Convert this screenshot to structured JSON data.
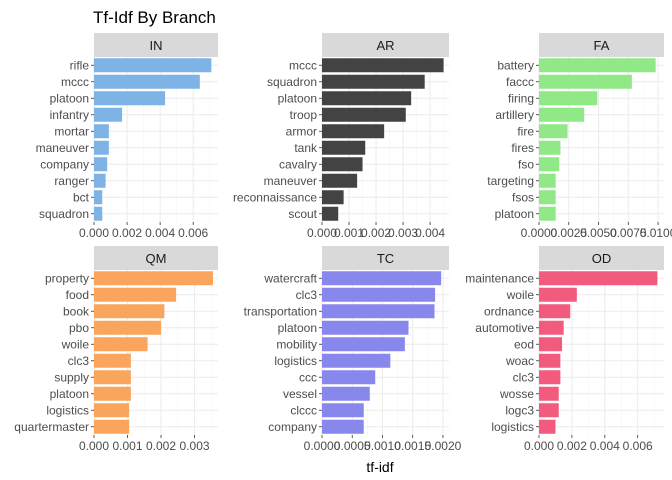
{
  "chart_data": {
    "type": "bar",
    "title": "Tf-Idf By Branch",
    "xlabel": "tf-idf",
    "ylabel": "",
    "orientation": "horizontal",
    "facets": [
      {
        "name": "IN",
        "color": "#7eb3e6",
        "xlim": [
          0,
          0.0075
        ],
        "x_ticks": [
          "0.000",
          "0.002",
          "0.004",
          "0.006"
        ],
        "x_tick_values": [
          0,
          0.002,
          0.004,
          0.006
        ],
        "categories": [
          "rifle",
          "mccc",
          "platoon",
          "infantry",
          "mortar",
          "maneuver",
          "company",
          "ranger",
          "bct",
          "squadron"
        ],
        "values": [
          0.0071,
          0.0064,
          0.0043,
          0.0017,
          0.0009,
          0.0009,
          0.0008,
          0.0007,
          0.0005,
          0.0005
        ]
      },
      {
        "name": "AR",
        "color": "#434344",
        "xlim": [
          0,
          0.0047
        ],
        "x_ticks": [
          "0.000",
          "0.001",
          "0.002",
          "0.003",
          "0.004"
        ],
        "x_tick_values": [
          0,
          0.001,
          0.002,
          0.003,
          0.004
        ],
        "categories": [
          "mccc",
          "squadron",
          "platoon",
          "troop",
          "armor",
          "tank",
          "cavalry",
          "maneuver",
          "reconnaissance",
          "scout"
        ],
        "values": [
          0.0045,
          0.0038,
          0.0033,
          0.0031,
          0.0023,
          0.0016,
          0.0015,
          0.0013,
          0.0008,
          0.0006
        ]
      },
      {
        "name": "FA",
        "color": "#91e887",
        "xlim": [
          0,
          0.0105
        ],
        "x_ticks": [
          "0.0000",
          "0.0025",
          "0.0050",
          "0.0075",
          "0.0100"
        ],
        "x_tick_values": [
          0,
          0.0025,
          0.005,
          0.0075,
          0.01
        ],
        "categories": [
          "battery",
          "faccc",
          "firing",
          "artillery",
          "fire",
          "fires",
          "fso",
          "targeting",
          "fsos",
          "platoon"
        ],
        "values": [
          0.0098,
          0.0078,
          0.0049,
          0.0038,
          0.0024,
          0.0018,
          0.0017,
          0.0014,
          0.0014,
          0.0014
        ]
      },
      {
        "name": "QM",
        "color": "#f9a55e",
        "xlim": [
          0,
          0.0037
        ],
        "x_ticks": [
          "0.000",
          "0.001",
          "0.002",
          "0.003"
        ],
        "x_tick_values": [
          0,
          0.001,
          0.002,
          0.003
        ],
        "categories": [
          "property",
          "food",
          "book",
          "pbo",
          "woile",
          "clc3",
          "supply",
          "platoon",
          "logistics",
          "quartermaster"
        ],
        "values": [
          0.00355,
          0.00245,
          0.0021,
          0.002,
          0.0016,
          0.0011,
          0.0011,
          0.0011,
          0.00105,
          0.00105
        ]
      },
      {
        "name": "TC",
        "color": "#8787ec",
        "xlim": [
          0,
          0.0021
        ],
        "x_ticks": [
          "0.0000",
          "0.0005",
          "0.0010",
          "0.0015",
          "0.0020"
        ],
        "x_tick_values": [
          0,
          0.0005,
          0.001,
          0.0015,
          0.002
        ],
        "categories": [
          "watercraft",
          "clc3",
          "transportation",
          "platoon",
          "mobility",
          "logistics",
          "ccc",
          "vessel",
          "clccc",
          "company"
        ],
        "values": [
          0.00197,
          0.00187,
          0.00186,
          0.00143,
          0.00137,
          0.00113,
          0.00088,
          0.00079,
          0.00069,
          0.00069
        ]
      },
      {
        "name": "OD",
        "color": "#f25a7e",
        "xlim": [
          0,
          0.0076
        ],
        "x_ticks": [
          "0.000",
          "0.002",
          "0.004",
          "0.006"
        ],
        "x_tick_values": [
          0,
          0.002,
          0.004,
          0.006
        ],
        "categories": [
          "maintenance",
          "woile",
          "ordnance",
          "automotive",
          "eod",
          "woac",
          "clc3",
          "wosse",
          "logc3",
          "logistics"
        ],
        "values": [
          0.0072,
          0.0023,
          0.0019,
          0.0015,
          0.0014,
          0.0013,
          0.0013,
          0.0012,
          0.0012,
          0.001
        ]
      }
    ],
    "grid": true,
    "legend": "none"
  }
}
